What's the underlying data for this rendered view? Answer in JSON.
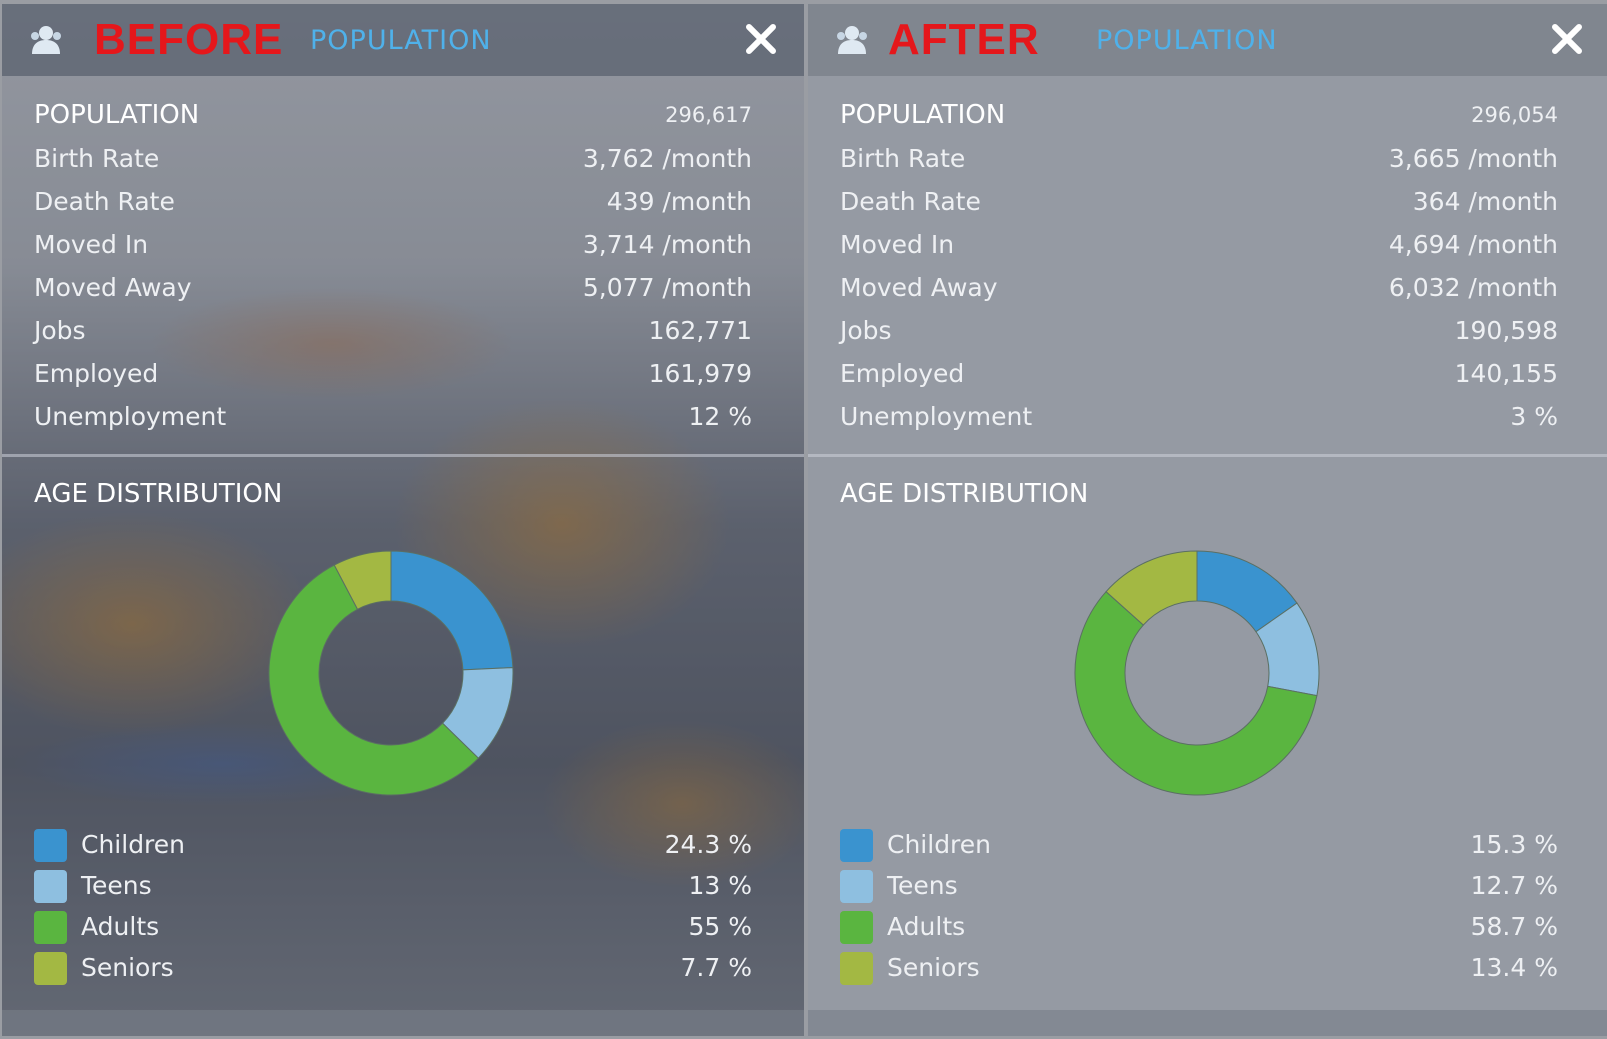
{
  "colors": {
    "tag": "#e5171b",
    "tab_title": "#4fb1ea",
    "children": "#3a93cf",
    "teens": "#8ebfe0",
    "adults": "#5ab540",
    "seniors": "#a3b843"
  },
  "panels": [
    {
      "tag": "BEFORE",
      "tab_title": "POPULATION",
      "icons": {
        "header": "person-icon",
        "close": "close-icon"
      },
      "stats": {
        "header": {
          "label": "POPULATION",
          "value": "296,617"
        },
        "rows": [
          {
            "label": "Birth Rate",
            "value": "3,762 /month"
          },
          {
            "label": "Death Rate",
            "value": "439 /month"
          },
          {
            "label": "Moved In",
            "value": "3,714 /month"
          },
          {
            "label": "Moved Away",
            "value": "5,077 /month"
          },
          {
            "label": "Jobs",
            "value": "162,771"
          },
          {
            "label": "Employed",
            "value": "161,979"
          },
          {
            "label": "Unemployment",
            "value": "12 %"
          }
        ]
      },
      "age_distribution": {
        "title": "AGE DISTRIBUTION",
        "groups": [
          {
            "label": "Children",
            "value": "24.3 %",
            "percent": 24.3
          },
          {
            "label": "Teens",
            "value": "13 %",
            "percent": 13
          },
          {
            "label": "Adults",
            "value": "55 %",
            "percent": 55
          },
          {
            "label": "Seniors",
            "value": "7.7 %",
            "percent": 7.7
          }
        ]
      }
    },
    {
      "tag": "AFTER",
      "tab_title": "POPULATION",
      "icons": {
        "header": "person-icon",
        "close": "close-icon"
      },
      "stats": {
        "header": {
          "label": "POPULATION",
          "value": "296,054"
        },
        "rows": [
          {
            "label": "Birth Rate",
            "value": "3,665 /month"
          },
          {
            "label": "Death Rate",
            "value": "364 /month"
          },
          {
            "label": "Moved In",
            "value": "4,694 /month"
          },
          {
            "label": "Moved Away",
            "value": "6,032 /month"
          },
          {
            "label": "Jobs",
            "value": "190,598"
          },
          {
            "label": "Employed",
            "value": "140,155"
          },
          {
            "label": "Unemployment",
            "value": "3 %"
          }
        ]
      },
      "age_distribution": {
        "title": "AGE DISTRIBUTION",
        "groups": [
          {
            "label": "Children",
            "value": "15.3 %",
            "percent": 15.3
          },
          {
            "label": "Teens",
            "value": "12.7 %",
            "percent": 12.7
          },
          {
            "label": "Adults",
            "value": "58.7 %",
            "percent": 58.7
          },
          {
            "label": "Seniors",
            "value": "13.4 %",
            "percent": 13.4
          }
        ]
      }
    }
  ]
}
